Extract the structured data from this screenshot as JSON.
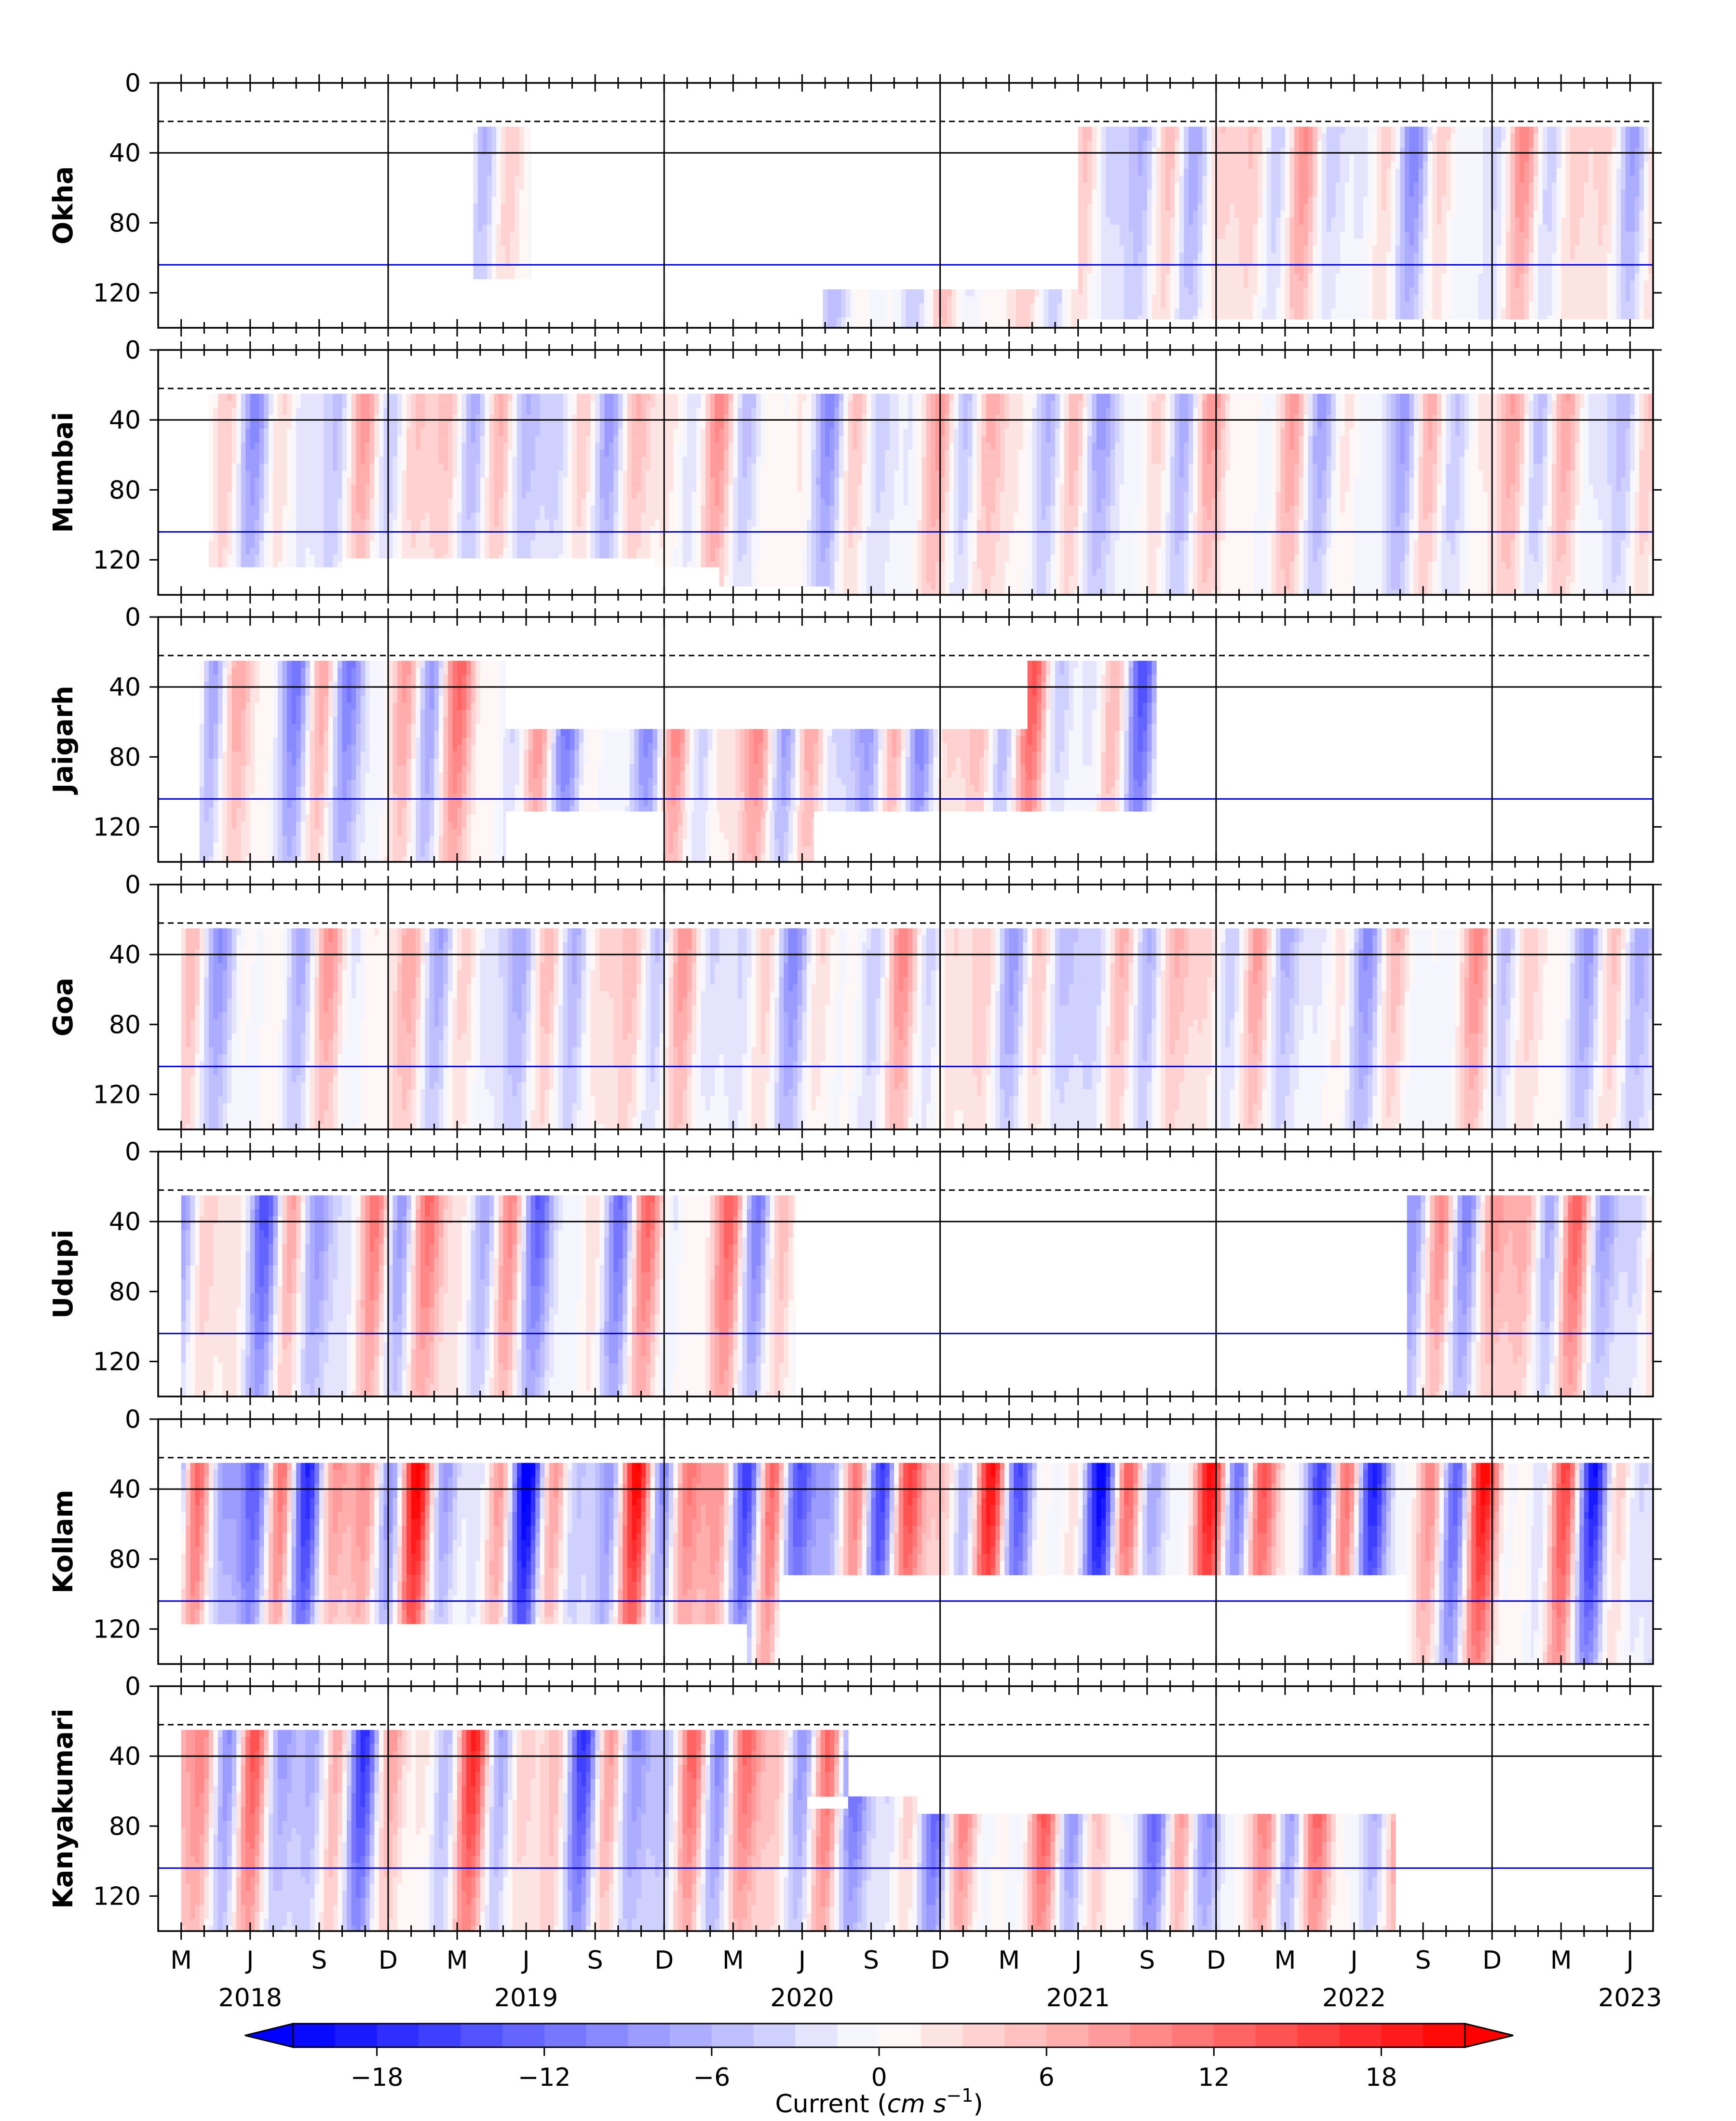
{
  "chart_data": {
    "type": "heatmap",
    "title": "",
    "description_colorbar": {
      "label_prefix": "Current (",
      "label_unit": "cm s",
      "label_exponent": "−1",
      "label_suffix": ")",
      "ticks": [
        -18,
        -12,
        -6,
        0,
        6,
        12,
        18
      ],
      "tick_labels": [
        "−18",
        "−12",
        "−6",
        "0",
        "6",
        "12",
        "18"
      ],
      "range": [
        -21,
        21
      ],
      "levels": [
        -21,
        -19.5,
        -18,
        -16.5,
        -15,
        -13.5,
        -12,
        -10.5,
        -9,
        -7.5,
        -6,
        -4.5,
        -3,
        -1.5,
        0,
        1.5,
        3,
        4.5,
        6,
        7.5,
        9,
        10.5,
        12,
        13.5,
        15,
        16.5,
        18,
        19.5,
        21
      ],
      "colormap": "bwr",
      "extend": "both"
    },
    "x_axis": {
      "month_ticks": [
        {
          "t": 0,
          "label": "M"
        },
        {
          "t": 3,
          "label": "J"
        },
        {
          "t": 6,
          "label": "S"
        },
        {
          "t": 9,
          "label": "D"
        },
        {
          "t": 12,
          "label": "M"
        },
        {
          "t": 15,
          "label": "J"
        },
        {
          "t": 18,
          "label": "S"
        },
        {
          "t": 21,
          "label": "D"
        },
        {
          "t": 24,
          "label": "M"
        },
        {
          "t": 27,
          "label": "J"
        },
        {
          "t": 30,
          "label": "S"
        },
        {
          "t": 33,
          "label": "D"
        },
        {
          "t": 36,
          "label": "M"
        },
        {
          "t": 39,
          "label": "J"
        },
        {
          "t": 42,
          "label": "S"
        },
        {
          "t": 45,
          "label": "D"
        },
        {
          "t": 48,
          "label": "M"
        },
        {
          "t": 51,
          "label": "J"
        },
        {
          "t": 54,
          "label": "S"
        },
        {
          "t": 57,
          "label": "D"
        },
        {
          "t": 60,
          "label": "M"
        },
        {
          "t": 63,
          "label": "J"
        }
      ],
      "years": [
        {
          "t": 3,
          "label": "2018"
        },
        {
          "t": 15,
          "label": "2019"
        },
        {
          "t": 27,
          "label": "2020"
        },
        {
          "t": 39,
          "label": "2021"
        },
        {
          "t": 51,
          "label": "2022"
        },
        {
          "t": 63,
          "label": "2023"
        }
      ],
      "range": [
        -1,
        64
      ],
      "year_boundaries": [
        9,
        21,
        33,
        45,
        57
      ]
    },
    "y_axis": {
      "range": [
        0,
        140
      ],
      "ticks": [
        0,
        40,
        80,
        120
      ],
      "inverted": true,
      "dashed_line_depth": 22,
      "black_line_depth": 40,
      "blue_line_depth": 104
    },
    "panels": [
      {
        "station": "Okha",
        "coverage": [
          [
            12.7,
            15.2,
            25,
            112
          ],
          [
            39.0,
            64.0,
            25,
            135
          ],
          [
            27.9,
            39.0,
            118,
            140
          ]
        ]
      },
      {
        "station": "Mumbai",
        "coverage": [
          [
            1.2,
            7.0,
            25,
            124
          ],
          [
            7.0,
            20.6,
            25,
            119
          ],
          [
            20.6,
            23.4,
            25,
            124
          ],
          [
            23.4,
            28.2,
            25,
            135
          ],
          [
            28.2,
            64.0,
            25,
            140
          ]
        ]
      },
      {
        "station": "Jaigarh",
        "coverage": [
          [
            0.8,
            14.1,
            25,
            140
          ],
          [
            14.1,
            36.8,
            64,
            111
          ],
          [
            21.0,
            27.5,
            111,
            140
          ],
          [
            36.8,
            42.4,
            25,
            111
          ]
        ]
      },
      {
        "station": "Goa",
        "coverage": [
          [
            0.0,
            64.0,
            25,
            140
          ]
        ]
      },
      {
        "station": "Udupi",
        "coverage": [
          [
            0.0,
            26.7,
            25,
            140
          ],
          [
            53.3,
            64.0,
            25,
            140
          ]
        ]
      },
      {
        "station": "Kollam",
        "coverage": [
          [
            0.0,
            26.0,
            25,
            117
          ],
          [
            24.6,
            26.0,
            117,
            140
          ],
          [
            26.0,
            53.3,
            25,
            89
          ],
          [
            53.3,
            58.8,
            25,
            140
          ],
          [
            58.8,
            64.0,
            25,
            140
          ]
        ]
      },
      {
        "station": "Kanyakumari",
        "coverage": [
          [
            0.0,
            27.2,
            25,
            140
          ],
          [
            27.2,
            29.0,
            25,
            63
          ],
          [
            29.0,
            32.0,
            63,
            140
          ],
          [
            27.2,
            29.0,
            70,
            140
          ],
          [
            32.0,
            52.8,
            73,
            140
          ]
        ]
      }
    ]
  }
}
